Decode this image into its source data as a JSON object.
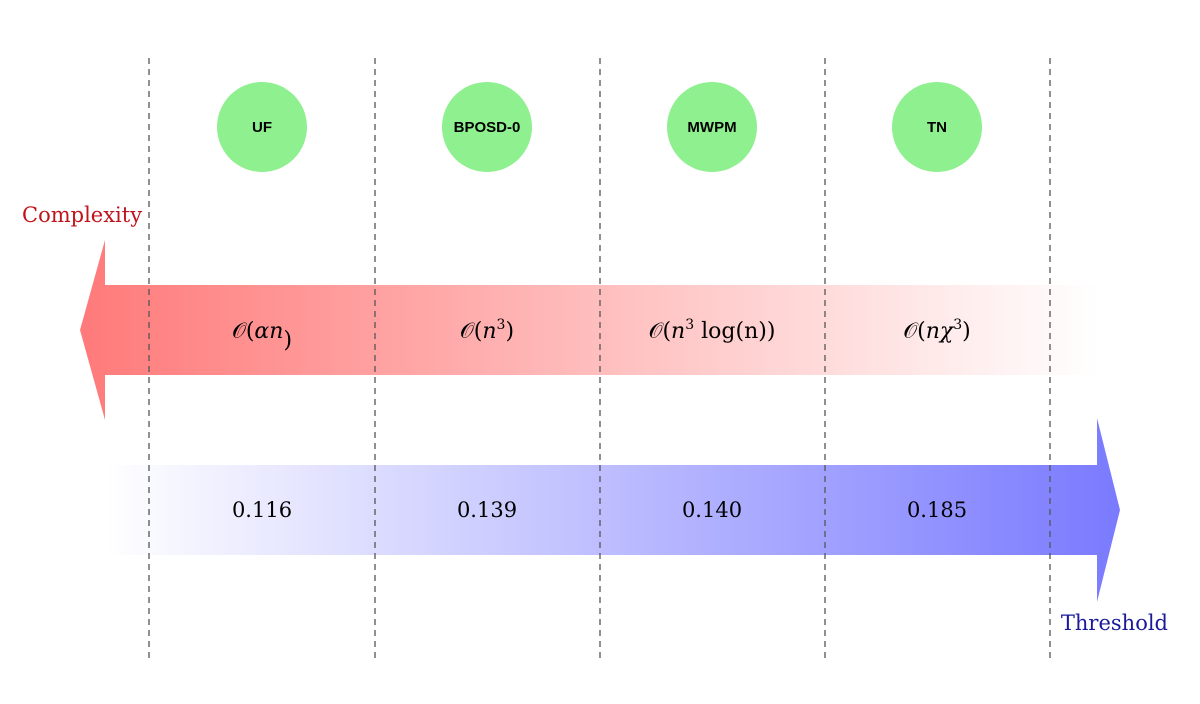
{
  "colors": {
    "node_fill": "#8ef08e",
    "complexity_arrow": "#ff7a7a",
    "threshold_arrow": "#7a7aff",
    "complexity_label": "#c0141c",
    "threshold_label": "#1a1a9a",
    "separator": "#555555"
  },
  "labels": {
    "complexity": "Complexity",
    "threshold": "Threshold"
  },
  "decoders": [
    {
      "name": "UF",
      "complexity": {
        "pre": "𝒪(",
        "base": "αn",
        "sup": "",
        "post": ")"
      },
      "threshold": "0.116"
    },
    {
      "name": "BPOSD-0",
      "complexity": {
        "pre": "𝒪(",
        "base": "n",
        "sup": "3",
        "post": ")"
      },
      "threshold": "0.139"
    },
    {
      "name": "MWPM",
      "complexity": {
        "pre": "𝒪(",
        "base": "n",
        "sup": "3",
        "post": " log(n))"
      },
      "threshold": "0.140"
    },
    {
      "name": "TN",
      "complexity": {
        "pre": "𝒪(",
        "base": "nχ",
        "sup": "3",
        "post": ")"
      },
      "threshold": "0.185"
    }
  ]
}
